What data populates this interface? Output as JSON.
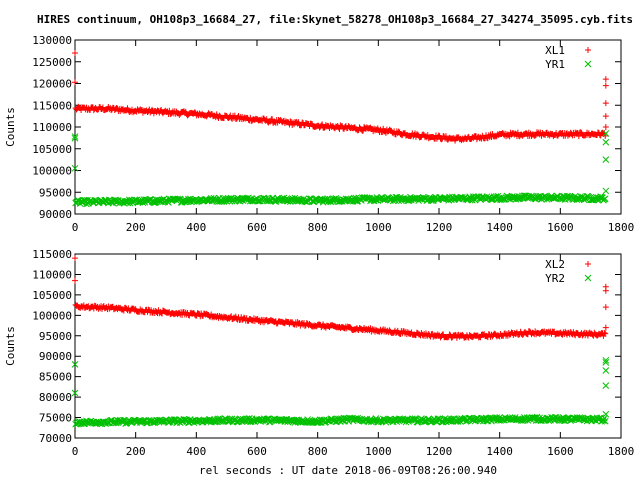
{
  "title": "HIRES continuum, OH108p3_16684_27, file:Skynet_58278_OH108p3_16684_27_34274_35095.cyb.fits",
  "xlabel": "rel seconds : UT date 2018-06-09T08:26:00.940",
  "colors": {
    "red": "#ff0000",
    "green": "#00c000",
    "axis": "#000000"
  },
  "chart_data": [
    {
      "type": "scatter",
      "ylabel": "Counts",
      "xlim": [
        0,
        1800
      ],
      "ylim": [
        90000,
        130000
      ],
      "x_ticks": [
        "0",
        "200",
        "400",
        "600",
        "800",
        "1000",
        "1200",
        "1400",
        "1600",
        "1800"
      ],
      "y_ticks": [
        "90000",
        "95000",
        "100000",
        "105000",
        "110000",
        "115000",
        "120000",
        "125000",
        "130000"
      ],
      "legend_position": "top-right",
      "series": [
        {
          "name": "XL1",
          "marker": "plus",
          "color": "#ff0000",
          "trend": [
            [
              0,
              114200
            ],
            [
              100,
              114200
            ],
            [
              200,
              113800
            ],
            [
              400,
              113000
            ],
            [
              600,
              111700
            ],
            [
              800,
              110300
            ],
            [
              1000,
              109300
            ],
            [
              1100,
              108300
            ],
            [
              1250,
              107300
            ],
            [
              1300,
              107300
            ],
            [
              1400,
              108200
            ],
            [
              1500,
              108400
            ],
            [
              1600,
              108300
            ],
            [
              1750,
              108400
            ]
          ],
          "noise": 450,
          "outliers": [
            [
              0,
              127000
            ],
            [
              0,
              120300
            ],
            [
              1750,
              121000
            ],
            [
              1750,
              119500
            ],
            [
              1750,
              115500
            ],
            [
              1750,
              112500
            ],
            [
              1750,
              110000
            ]
          ]
        },
        {
          "name": "YR1",
          "marker": "x",
          "color": "#00c000",
          "trend": [
            [
              0,
              92700
            ],
            [
              200,
              92900
            ],
            [
              400,
              93200
            ],
            [
              600,
              93400
            ],
            [
              800,
              93100
            ],
            [
              900,
              93300
            ],
            [
              1000,
              93400
            ],
            [
              1200,
              93500
            ],
            [
              1400,
              93700
            ],
            [
              1500,
              93800
            ],
            [
              1750,
              93600
            ]
          ],
          "noise": 450,
          "outliers": [
            [
              0,
              107800
            ],
            [
              0,
              107400
            ],
            [
              0,
              100500
            ],
            [
              1750,
              108500
            ],
            [
              1750,
              106500
            ],
            [
              1750,
              102500
            ],
            [
              1750,
              95300
            ]
          ]
        }
      ]
    },
    {
      "type": "scatter",
      "ylabel": "Counts",
      "xlim": [
        0,
        1800
      ],
      "ylim": [
        70000,
        115000
      ],
      "x_ticks": [
        "0",
        "200",
        "400",
        "600",
        "800",
        "1000",
        "1200",
        "1400",
        "1600",
        "1800"
      ],
      "y_ticks": [
        "70000",
        "75000",
        "80000",
        "85000",
        "90000",
        "95000",
        "100000",
        "105000",
        "110000",
        "115000"
      ],
      "legend_position": "top-right",
      "series": [
        {
          "name": "XL2",
          "marker": "plus",
          "color": "#ff0000",
          "trend": [
            [
              0,
              102200
            ],
            [
              100,
              101900
            ],
            [
              200,
              101300
            ],
            [
              400,
              100200
            ],
            [
              600,
              98800
            ],
            [
              800,
              97500
            ],
            [
              1000,
              96300
            ],
            [
              1200,
              95000
            ],
            [
              1300,
              94800
            ],
            [
              1400,
              95200
            ],
            [
              1500,
              95800
            ],
            [
              1600,
              95600
            ],
            [
              1750,
              95300
            ]
          ],
          "noise": 400,
          "outliers": [
            [
              0,
              114000
            ],
            [
              0,
              108500
            ],
            [
              1750,
              107000
            ],
            [
              1750,
              106000
            ],
            [
              1750,
              102000
            ],
            [
              1750,
              97000
            ]
          ]
        },
        {
          "name": "YR2",
          "marker": "x",
          "color": "#00c000",
          "trend": [
            [
              0,
              73800
            ],
            [
              200,
              74000
            ],
            [
              400,
              74200
            ],
            [
              600,
              74400
            ],
            [
              800,
              74100
            ],
            [
              900,
              74500
            ],
            [
              1000,
              74300
            ],
            [
              1200,
              74300
            ],
            [
              1400,
              74600
            ],
            [
              1500,
              74700
            ],
            [
              1750,
              74500
            ]
          ],
          "noise": 450,
          "outliers": [
            [
              0,
              88000
            ],
            [
              0,
              81000
            ],
            [
              1750,
              89000
            ],
            [
              1750,
              88500
            ],
            [
              1750,
              86500
            ],
            [
              1750,
              82800
            ],
            [
              1750,
              75800
            ]
          ]
        }
      ]
    }
  ]
}
